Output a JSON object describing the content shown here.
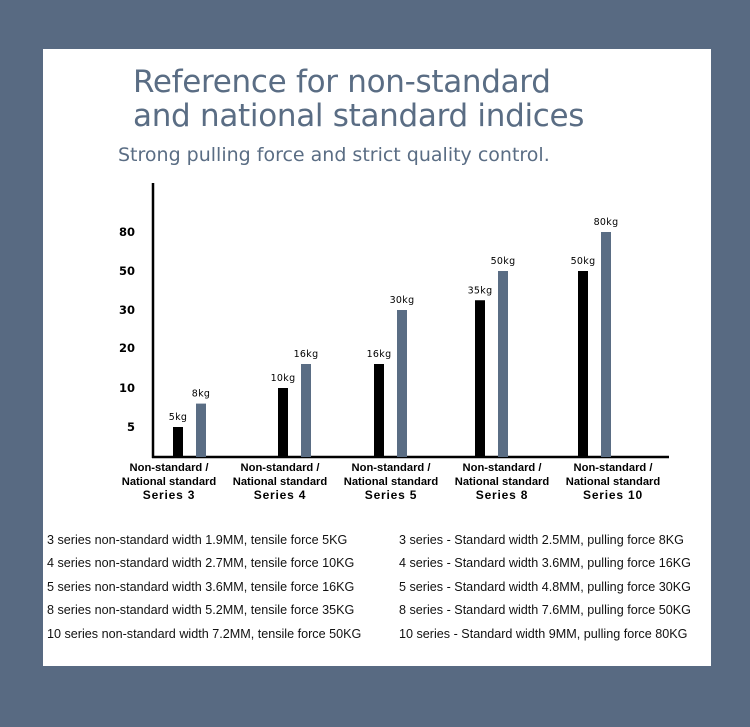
{
  "title": {
    "line1": "Reference for non-standard",
    "line2": "and national standard indices"
  },
  "subtitle": "Strong pulling force and strict quality control.",
  "chart_data": {
    "type": "bar",
    "categories": [
      [
        "Non-standard /",
        "National standard",
        "Series 3"
      ],
      [
        "Non-standard /",
        "National standard",
        "Series 4"
      ],
      [
        "Non-standard /",
        "National standard",
        "Series 5"
      ],
      [
        "Non-standard /",
        "National standard",
        "Series 8"
      ],
      [
        "Non-standard /",
        "National standard",
        "Series 10"
      ]
    ],
    "y_tick_labels": [
      "5",
      "10",
      "20",
      "30",
      "50",
      "80"
    ],
    "series": [
      {
        "values": [
          5,
          10,
          16,
          35,
          50
        ],
        "labels": [
          "5kg",
          "10kg",
          "16kg",
          "35kg",
          "50kg"
        ],
        "color": "#000000"
      },
      {
        "values": [
          8,
          16,
          30,
          50,
          80
        ],
        "labels": [
          "8kg",
          "16kg",
          "30kg",
          "50kg",
          "80kg"
        ],
        "color": "#5a6d84"
      }
    ],
    "grid": false
  },
  "specs": {
    "non_standard": [
      "3 series non-standard width 1.9MM, tensile force 5KG",
      "4 series non-standard width 2.7MM, tensile force 10KG",
      "5 series non-standard width 3.6MM, tensile force 16KG",
      "8 series non-standard width 5.2MM, tensile force 35KG",
      "10 series non-standard width 7.2MM, tensile force 50KG"
    ],
    "standard": [
      "3 series - Standard width 2.5MM, pulling force 8KG",
      "4 series - Standard width 3.6MM, pulling force 16KG",
      "5 series - Standard width 4.8MM, pulling force 30KG",
      "8 series - Standard width 7.6MM, pulling force 50KG",
      "10 series - Standard width 9MM, pulling force 80KG"
    ]
  }
}
